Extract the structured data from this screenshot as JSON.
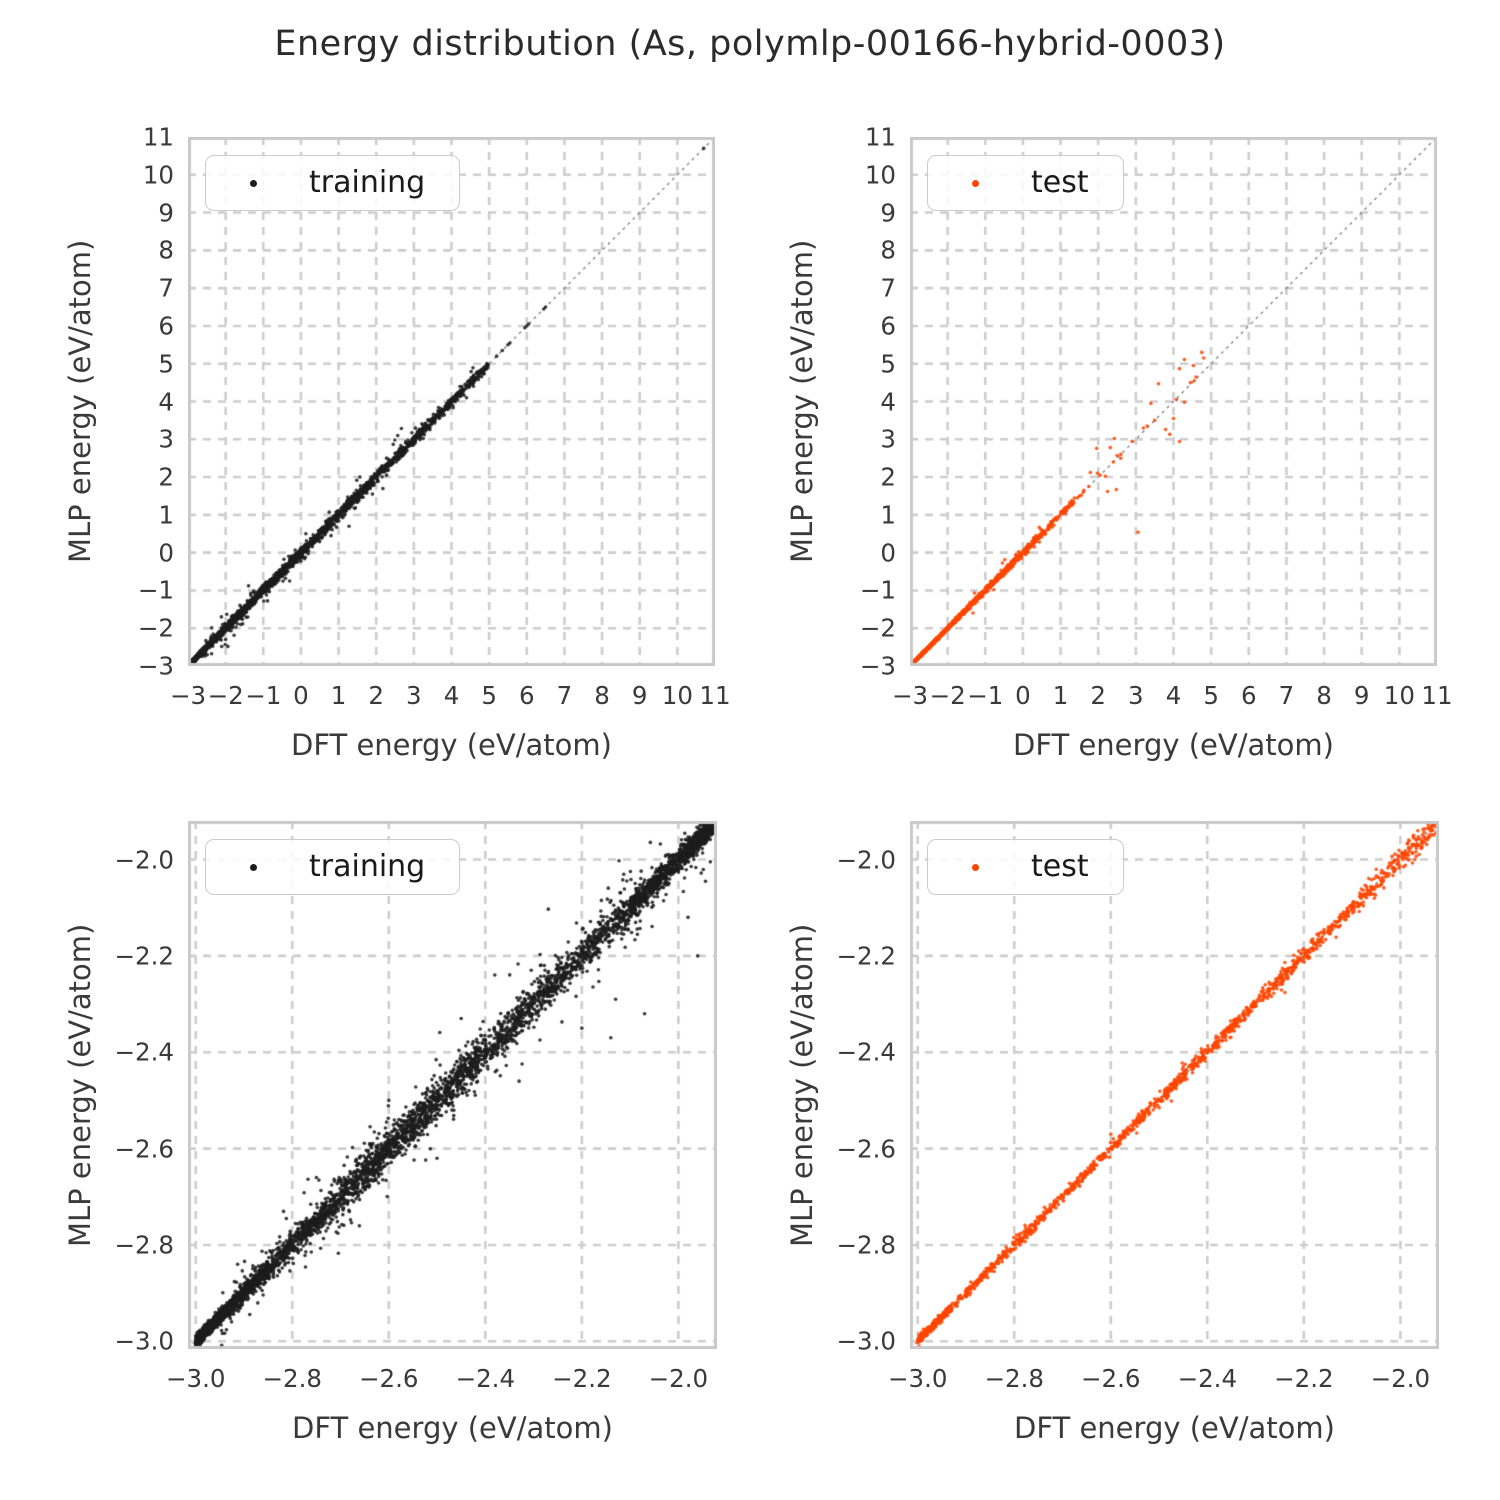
{
  "title": "Energy distribution (As, polymlp-00166-hybrid-0003)",
  "colors": {
    "training": "#1c1c1c",
    "test": "#ff4500",
    "grid": "#cdcdcd",
    "frame": "#c9c9c9",
    "identity_line": "#777777",
    "text": "#3a3a3a"
  },
  "chart_data": [
    {
      "id": "top-left",
      "type": "scatter",
      "series": "training",
      "color": "#1c1c1c",
      "xlabel": "DFT energy (eV/atom)",
      "ylabel": "MLP energy (eV/atom)",
      "xlim": [
        -3,
        11
      ],
      "ylim": [
        -3,
        11
      ],
      "xticks": {
        "values": [
          -3,
          -2,
          -1,
          0,
          1,
          2,
          3,
          4,
          5,
          6,
          7,
          8,
          9,
          10,
          11
        ],
        "labels": [
          "−3",
          "−2",
          "−1",
          "0",
          "1",
          "2",
          "3",
          "4",
          "5",
          "6",
          "7",
          "8",
          "9",
          "10",
          "11"
        ]
      },
      "yticks": {
        "values": [
          -3,
          -2,
          -1,
          0,
          1,
          2,
          3,
          4,
          5,
          6,
          7,
          8,
          9,
          10,
          11
        ],
        "labels": [
          "−3",
          "−2",
          "−1",
          "0",
          "1",
          "2",
          "3",
          "4",
          "5",
          "6",
          "7",
          "8",
          "9",
          "10",
          "11"
        ]
      },
      "grid": true,
      "identity_line": true,
      "legend": {
        "label": "training",
        "position": "upper-left"
      },
      "point_cloud": {
        "seed": 11,
        "band_segments": [
          {
            "x0": -3.0,
            "x1": -2.7,
            "n": 900,
            "sigma": 0.02
          },
          {
            "x0": -2.7,
            "x1": -2.0,
            "n": 520,
            "sigma": 0.04
          },
          {
            "x0": -2.0,
            "x1": -1.0,
            "n": 360,
            "sigma": 0.06
          },
          {
            "x0": -1.0,
            "x1": 0.5,
            "n": 420,
            "sigma": 0.07
          },
          {
            "x0": 0.5,
            "x1": 2.0,
            "n": 360,
            "sigma": 0.08
          },
          {
            "x0": 2.0,
            "x1": 3.5,
            "n": 260,
            "sigma": 0.08
          },
          {
            "x0": 3.5,
            "x1": 5.0,
            "n": 210,
            "sigma": 0.06
          }
        ],
        "spread_segments": [
          {
            "x0": -2.6,
            "x1": -1.2,
            "n": 60,
            "sigma": 0.22
          },
          {
            "x0": -1.0,
            "x1": 3.0,
            "n": 50,
            "sigma": 0.25
          },
          {
            "x0": 3.0,
            "x1": 5.0,
            "n": 25,
            "sigma": 0.18
          }
        ],
        "diagonal_points": [
          5.2,
          5.35,
          5.5,
          5.55,
          5.95,
          6.0,
          6.05,
          6.45,
          6.5,
          10.7
        ],
        "outliers": [
          [
            -1.45,
            -1.71
          ],
          [
            -1.6,
            -1.9
          ],
          [
            -2.0,
            -2.3
          ],
          [
            -0.3,
            -0.75
          ],
          [
            0.8,
            0.45
          ],
          [
            1.9,
            1.55
          ],
          [
            4.4,
            4.1
          ]
        ]
      }
    },
    {
      "id": "top-right",
      "type": "scatter",
      "series": "test",
      "color": "#ff4500",
      "xlabel": "DFT energy (eV/atom)",
      "ylabel": "MLP energy (eV/atom)",
      "xlim": [
        -3,
        11
      ],
      "ylim": [
        -3,
        11
      ],
      "xticks": {
        "values": [
          -3,
          -2,
          -1,
          0,
          1,
          2,
          3,
          4,
          5,
          6,
          7,
          8,
          9,
          10,
          11
        ],
        "labels": [
          "−3",
          "−2",
          "−1",
          "0",
          "1",
          "2",
          "3",
          "4",
          "5",
          "6",
          "7",
          "8",
          "9",
          "10",
          "11"
        ]
      },
      "yticks": {
        "values": [
          -3,
          -2,
          -1,
          0,
          1,
          2,
          3,
          4,
          5,
          6,
          7,
          8,
          9,
          10,
          11
        ],
        "labels": [
          "−3",
          "−2",
          "−1",
          "0",
          "1",
          "2",
          "3",
          "4",
          "5",
          "6",
          "7",
          "8",
          "9",
          "10",
          "11"
        ]
      },
      "grid": true,
      "identity_line": true,
      "legend": {
        "label": "test",
        "position": "upper-left"
      },
      "point_cloud": {
        "seed": 22,
        "band_segments": [
          {
            "x0": -3.0,
            "x1": -2.5,
            "n": 700,
            "sigma": 0.012
          },
          {
            "x0": -2.5,
            "x1": -1.8,
            "n": 360,
            "sigma": 0.02
          },
          {
            "x0": -1.8,
            "x1": -1.0,
            "n": 260,
            "sigma": 0.03
          },
          {
            "x0": -1.0,
            "x1": -0.2,
            "n": 190,
            "sigma": 0.04
          },
          {
            "x0": -0.2,
            "x1": 0.6,
            "n": 120,
            "sigma": 0.05
          },
          {
            "x0": 0.6,
            "x1": 1.4,
            "n": 60,
            "sigma": 0.05
          }
        ],
        "spread_segments": [
          {
            "x0": -1.5,
            "x1": 0.8,
            "n": 25,
            "sigma": 0.12
          }
        ],
        "diagonal_points": [
          1.45,
          1.5,
          1.6,
          1.75,
          2.05,
          2.4,
          2.6,
          3.5,
          4.55
        ],
        "outliers": [
          [
            1.55,
            1.52
          ],
          [
            1.62,
            1.65
          ],
          [
            1.79,
            2.12
          ],
          [
            1.96,
            2.76
          ],
          [
            1.98,
            2.1
          ],
          [
            2.19,
            2.02
          ],
          [
            2.25,
            1.62
          ],
          [
            2.32,
            2.78
          ],
          [
            2.43,
            3.02
          ],
          [
            2.48,
            1.67
          ],
          [
            2.5,
            2.57
          ],
          [
            2.6,
            2.5
          ],
          [
            2.9,
            2.95
          ],
          [
            3.06,
            0.54
          ],
          [
            3.2,
            3.3
          ],
          [
            3.3,
            3.35
          ],
          [
            3.4,
            3.95
          ],
          [
            3.6,
            4.47
          ],
          [
            3.79,
            3.26
          ],
          [
            3.9,
            3.13
          ],
          [
            4.0,
            3.55
          ],
          [
            4.08,
            4.05
          ],
          [
            4.16,
            2.94
          ],
          [
            4.16,
            4.87
          ],
          [
            4.29,
            3.98
          ],
          [
            4.29,
            5.11
          ],
          [
            4.45,
            4.5
          ],
          [
            4.53,
            4.95
          ],
          [
            4.6,
            4.65
          ],
          [
            4.75,
            5.3
          ],
          [
            4.8,
            5.15
          ]
        ]
      }
    },
    {
      "id": "bottom-left",
      "type": "scatter",
      "series": "training",
      "color": "#1c1c1c",
      "xlabel": "DFT energy (eV/atom)",
      "ylabel": "MLP energy (eV/atom)",
      "xlim": [
        -3.016,
        -1.92
      ],
      "ylim": [
        -3.016,
        -1.92
      ],
      "xticks": {
        "values": [
          -3.0,
          -2.8,
          -2.6,
          -2.4,
          -2.2,
          -2.0
        ],
        "labels": [
          "−3.0",
          "−2.8",
          "−2.6",
          "−2.4",
          "−2.2",
          "−2.0"
        ]
      },
      "yticks": {
        "values": [
          -3.0,
          -2.8,
          -2.6,
          -2.4,
          -2.2,
          -2.0
        ],
        "labels": [
          "−3.0",
          "−2.8",
          "−2.6",
          "−2.4",
          "−2.2",
          "−2.0"
        ]
      },
      "grid": true,
      "identity_line": true,
      "legend": {
        "label": "training",
        "position": "upper-left"
      },
      "point_cloud": {
        "seed": 33,
        "band_segments": [
          {
            "x0": -3.0,
            "x1": -2.93,
            "n": 900,
            "sigma": 0.006
          },
          {
            "x0": -2.93,
            "x1": -2.85,
            "n": 450,
            "sigma": 0.01
          },
          {
            "x0": -2.85,
            "x1": -2.7,
            "n": 500,
            "sigma": 0.014
          },
          {
            "x0": -2.7,
            "x1": -2.55,
            "n": 550,
            "sigma": 0.018
          },
          {
            "x0": -2.55,
            "x1": -2.4,
            "n": 550,
            "sigma": 0.02
          },
          {
            "x0": -2.4,
            "x1": -2.25,
            "n": 420,
            "sigma": 0.018
          },
          {
            "x0": -2.25,
            "x1": -2.1,
            "n": 360,
            "sigma": 0.016
          },
          {
            "x0": -2.1,
            "x1": -1.99,
            "n": 500,
            "sigma": 0.012
          },
          {
            "x0": -1.99,
            "x1": -1.925,
            "n": 650,
            "sigma": 0.01
          }
        ],
        "spread_segments": [
          {
            "x0": -2.95,
            "x1": -2.6,
            "n": 120,
            "sigma": 0.04
          },
          {
            "x0": -2.7,
            "x1": -2.2,
            "n": 140,
            "sigma": 0.05
          },
          {
            "x0": -2.2,
            "x1": -1.93,
            "n": 120,
            "sigma": 0.045
          }
        ],
        "diagonal_points": [],
        "outliers": [
          [
            -2.14,
            -2.37
          ],
          [
            -2.13,
            -2.29
          ],
          [
            -2.07,
            -2.32
          ],
          [
            -2.33,
            -2.46
          ],
          [
            -2.2,
            -2.35
          ],
          [
            -1.98,
            -2.12
          ],
          [
            -1.96,
            -2.2
          ],
          [
            -2.5,
            -2.62
          ],
          [
            -2.45,
            -2.33
          ],
          [
            -2.6,
            -2.5
          ],
          [
            -2.75,
            -2.66
          ]
        ]
      }
    },
    {
      "id": "bottom-right",
      "type": "scatter",
      "series": "test",
      "color": "#ff4500",
      "xlabel": "DFT energy (eV/atom)",
      "ylabel": "MLP energy (eV/atom)",
      "xlim": [
        -3.016,
        -1.92
      ],
      "ylim": [
        -3.016,
        -1.92
      ],
      "xticks": {
        "values": [
          -3.0,
          -2.8,
          -2.6,
          -2.4,
          -2.2,
          -2.0
        ],
        "labels": [
          "−3.0",
          "−2.8",
          "−2.6",
          "−2.4",
          "−2.2",
          "−2.0"
        ]
      },
      "yticks": {
        "values": [
          -3.0,
          -2.8,
          -2.6,
          -2.4,
          -2.2,
          -2.0
        ],
        "labels": [
          "−3.0",
          "−2.8",
          "−2.6",
          "−2.4",
          "−2.2",
          "−2.0"
        ]
      },
      "grid": true,
      "identity_line": true,
      "legend": {
        "label": "test",
        "position": "upper-left"
      },
      "point_cloud": {
        "seed": 44,
        "band_segments": [
          {
            "x0": -3.0,
            "x1": -2.93,
            "n": 260,
            "sigma": 0.004
          },
          {
            "x0": -2.93,
            "x1": -2.82,
            "n": 130,
            "sigma": 0.005
          },
          {
            "x0": -2.82,
            "x1": -2.55,
            "n": 320,
            "sigma": 0.006
          },
          {
            "x0": -2.55,
            "x1": -2.3,
            "n": 320,
            "sigma": 0.007
          },
          {
            "x0": -2.3,
            "x1": -2.1,
            "n": 230,
            "sigma": 0.009
          },
          {
            "x0": -2.1,
            "x1": -1.925,
            "n": 210,
            "sigma": 0.012
          }
        ],
        "spread_segments": [
          {
            "x0": -2.5,
            "x1": -2.2,
            "n": 20,
            "sigma": 0.018
          }
        ],
        "diagonal_points": [],
        "outliers": [
          [
            -2.28,
            -2.26
          ],
          [
            -2.45,
            -2.43
          ],
          [
            -2.6,
            -2.57
          ],
          [
            -1.97,
            -2.0
          ],
          [
            -2.05,
            -2.02
          ]
        ]
      }
    }
  ]
}
